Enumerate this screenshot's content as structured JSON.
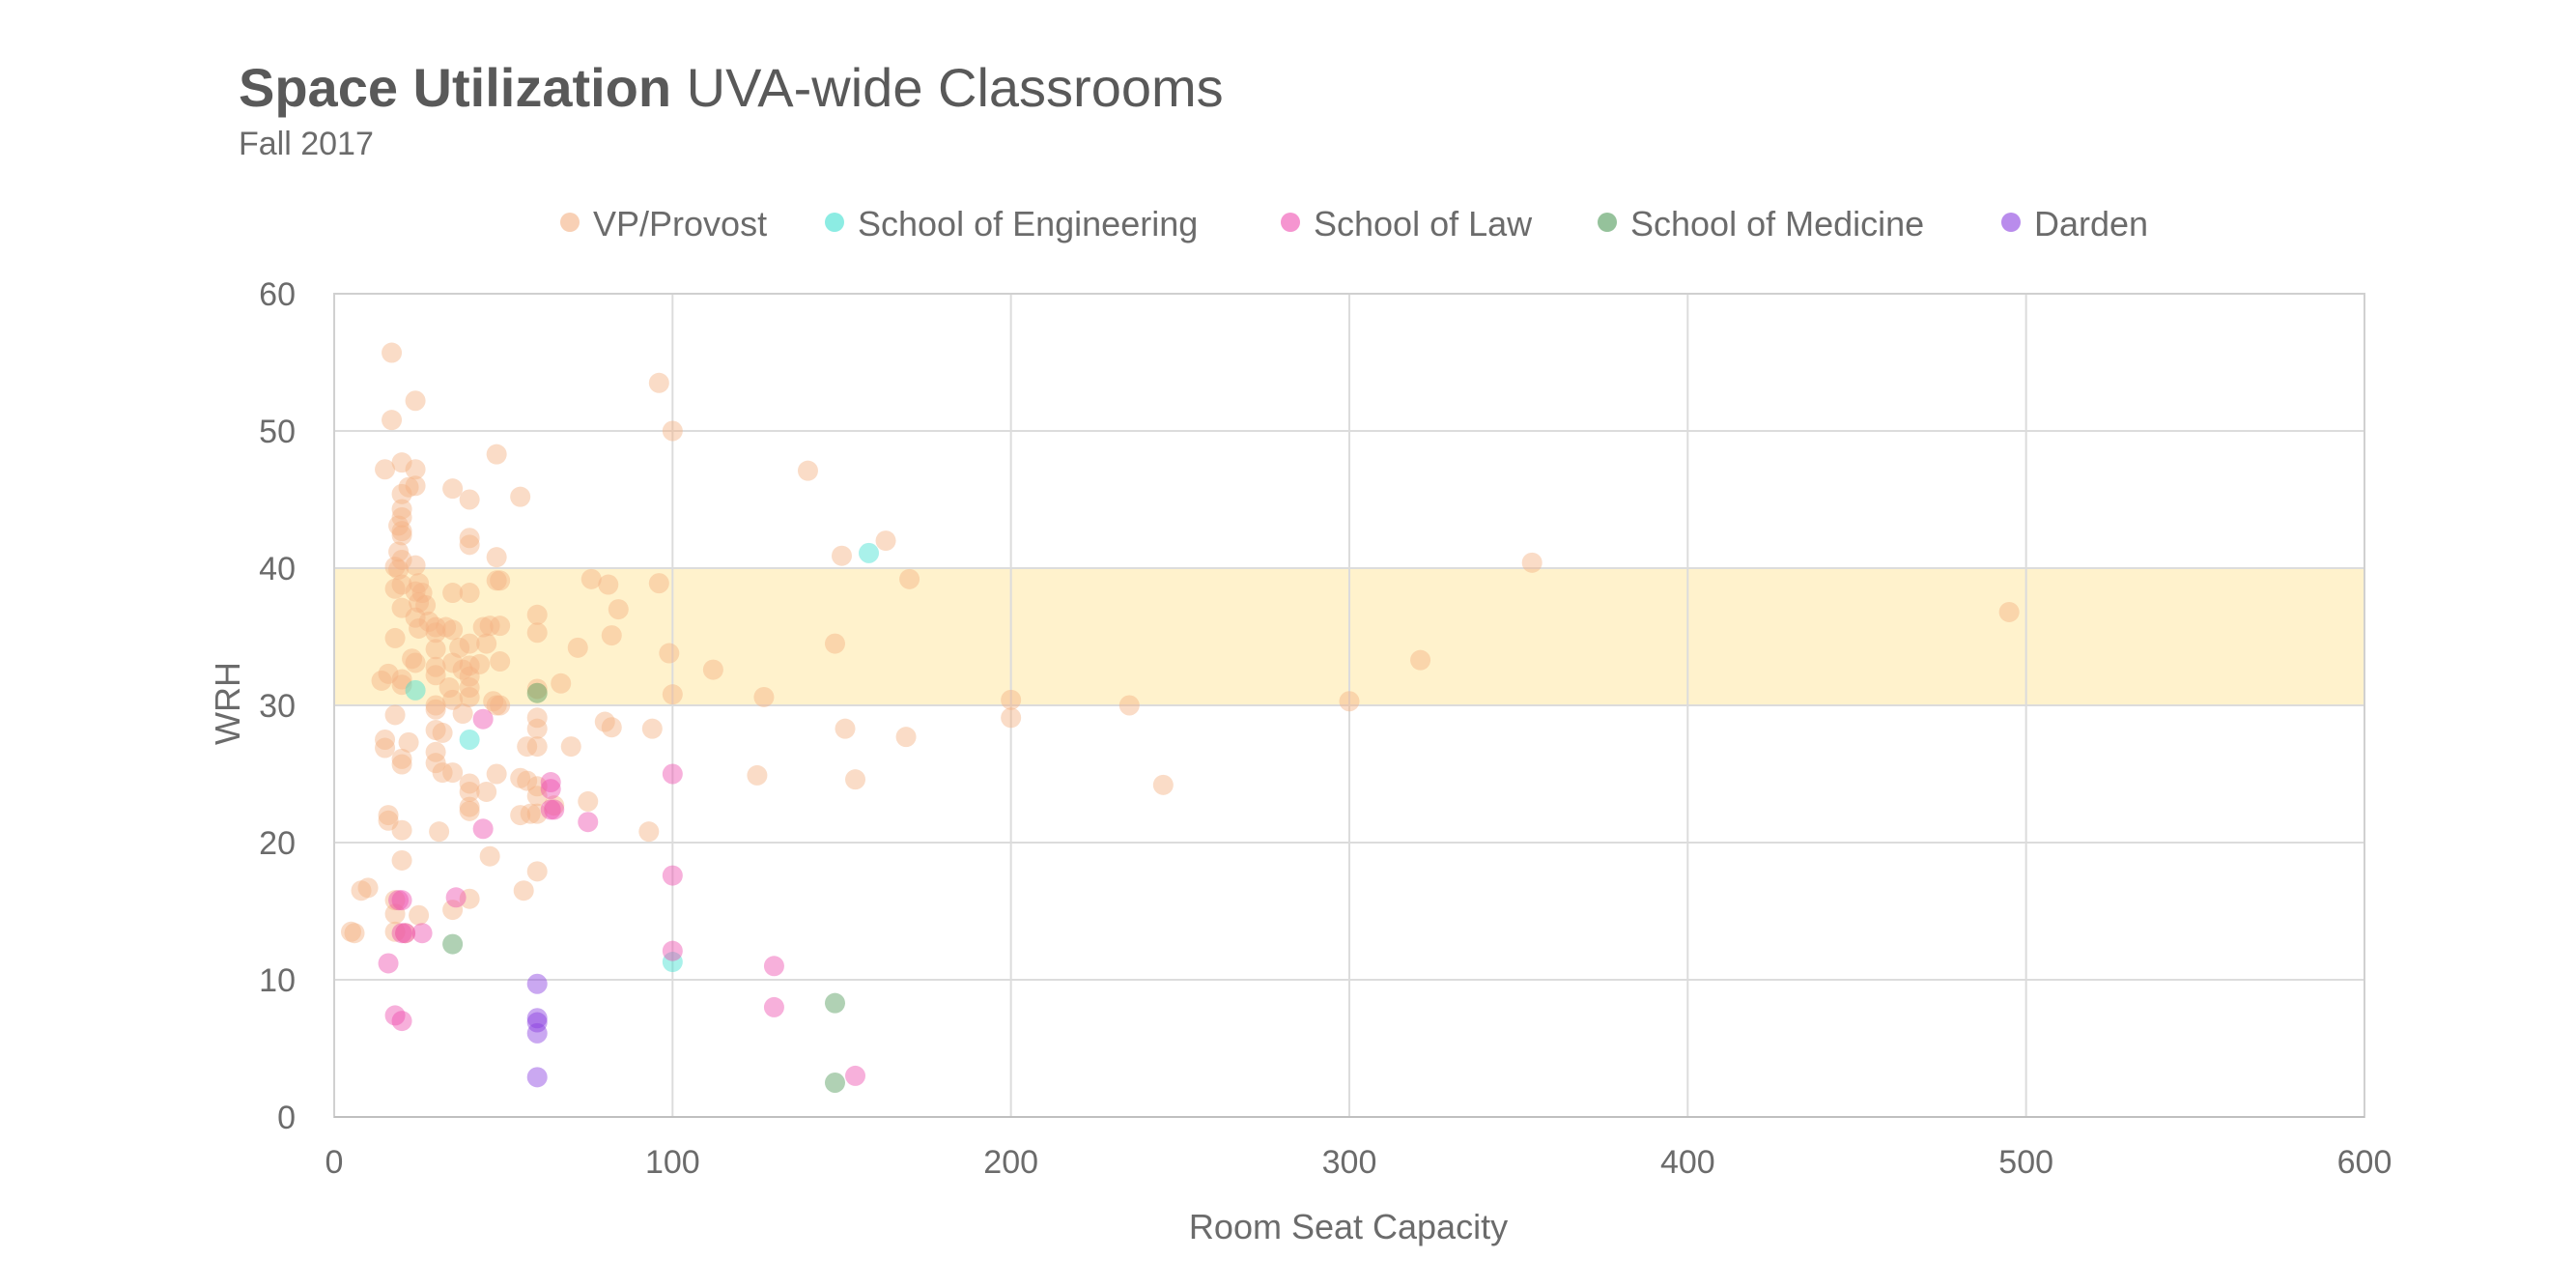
{
  "header": {
    "title_bold": "Space Utilization",
    "title_rest": "UVA-wide Classrooms",
    "subtitle": "Fall 2017"
  },
  "chart_data": {
    "type": "scatter",
    "title": "Space Utilization UVA-wide Classrooms",
    "subtitle": "Fall 2017",
    "xlabel": "Room Seat Capacity",
    "ylabel": "WRH",
    "xlim": [
      0,
      600
    ],
    "ylim": [
      0,
      60
    ],
    "xticks": [
      0,
      100,
      200,
      300,
      400,
      500,
      600
    ],
    "yticks": [
      0,
      10,
      20,
      30,
      40,
      50,
      60
    ],
    "grid": true,
    "legend_position": "top",
    "target_band": {
      "y_from": 30,
      "y_to": 40,
      "color": "#fff2cc"
    },
    "series": [
      {
        "name": "VP/Provost",
        "color": "#f4b183",
        "points": [
          [
            5,
            13.5
          ],
          [
            6,
            13.4
          ],
          [
            8,
            16.5
          ],
          [
            10,
            16.7
          ],
          [
            14,
            31.8
          ],
          [
            15,
            27.5
          ],
          [
            15,
            26.9
          ],
          [
            15,
            47.2
          ],
          [
            16,
            22
          ],
          [
            16,
            32.3
          ],
          [
            16,
            21.6
          ],
          [
            17,
            55.7
          ],
          [
            17,
            50.8
          ],
          [
            18,
            34.9
          ],
          [
            18,
            29.3
          ],
          [
            18,
            38.5
          ],
          [
            18,
            40.1
          ],
          [
            18,
            15.8
          ],
          [
            18,
            13.5
          ],
          [
            18,
            14.8
          ],
          [
            19,
            39.9
          ],
          [
            19,
            43.1
          ],
          [
            19,
            41.2
          ],
          [
            20,
            47.7
          ],
          [
            20,
            45.4
          ],
          [
            20,
            44.3
          ],
          [
            20,
            43.7
          ],
          [
            20,
            42.7
          ],
          [
            20,
            42.4
          ],
          [
            20,
            40.6
          ],
          [
            20,
            38.8
          ],
          [
            20,
            37.1
          ],
          [
            20,
            31.9
          ],
          [
            20,
            31.5
          ],
          [
            20,
            26.1
          ],
          [
            20,
            25.7
          ],
          [
            20,
            20.9
          ],
          [
            20,
            18.7
          ],
          [
            21,
            13.4
          ],
          [
            22,
            45.9
          ],
          [
            22,
            27.3
          ],
          [
            23,
            33.4
          ],
          [
            24,
            33.1
          ],
          [
            24,
            38.3
          ],
          [
            24,
            40.2
          ],
          [
            24,
            52.2
          ],
          [
            24,
            47.2
          ],
          [
            24,
            46
          ],
          [
            24,
            36.4
          ],
          [
            25,
            37.5
          ],
          [
            25,
            35.6
          ],
          [
            25,
            14.7
          ],
          [
            25,
            38.9
          ],
          [
            26,
            38.2
          ],
          [
            27,
            37.3
          ],
          [
            28,
            36.1
          ],
          [
            30,
            35.7
          ],
          [
            30,
            35.3
          ],
          [
            30,
            34.1
          ],
          [
            30,
            32.8
          ],
          [
            30,
            32.2
          ],
          [
            30,
            30
          ],
          [
            30,
            29.7
          ],
          [
            30,
            28.2
          ],
          [
            30,
            26.6
          ],
          [
            30,
            25.8
          ],
          [
            31,
            20.8
          ],
          [
            32,
            28
          ],
          [
            32,
            25.1
          ],
          [
            33,
            35.7
          ],
          [
            34,
            31.3
          ],
          [
            35,
            45.8
          ],
          [
            35,
            38.2
          ],
          [
            35,
            35.5
          ],
          [
            35,
            33.1
          ],
          [
            35,
            30.4
          ],
          [
            35,
            25.1
          ],
          [
            35,
            15.1
          ],
          [
            37,
            34.2
          ],
          [
            38,
            32.6
          ],
          [
            38,
            29.4
          ],
          [
            40,
            45
          ],
          [
            40,
            42.2
          ],
          [
            40,
            41.7
          ],
          [
            40,
            38.2
          ],
          [
            40,
            34.5
          ],
          [
            40,
            32.9
          ],
          [
            40,
            32.1
          ],
          [
            40,
            31.3
          ],
          [
            40,
            30.6
          ],
          [
            40,
            24.3
          ],
          [
            40,
            23.7
          ],
          [
            40,
            22.6
          ],
          [
            40,
            22.3
          ],
          [
            40,
            15.9
          ],
          [
            43,
            33
          ],
          [
            44,
            35.7
          ],
          [
            45,
            34.5
          ],
          [
            45,
            23.7
          ],
          [
            46,
            19
          ],
          [
            46,
            35.8
          ],
          [
            47,
            30.3
          ],
          [
            48,
            48.3
          ],
          [
            48,
            40.8
          ],
          [
            48,
            39.1
          ],
          [
            48,
            30
          ],
          [
            48,
            25
          ],
          [
            49,
            39.1
          ],
          [
            49,
            35.8
          ],
          [
            49,
            33.2
          ],
          [
            49,
            30
          ],
          [
            55,
            45.2
          ],
          [
            55,
            24.7
          ],
          [
            55,
            22
          ],
          [
            56,
            16.5
          ],
          [
            57,
            24.5
          ],
          [
            57,
            27
          ],
          [
            58,
            22.1
          ],
          [
            60,
            36.6
          ],
          [
            60,
            35.3
          ],
          [
            60,
            31.2
          ],
          [
            60,
            29.1
          ],
          [
            60,
            28.3
          ],
          [
            60,
            27
          ],
          [
            60,
            24.1
          ],
          [
            60,
            23.4
          ],
          [
            60,
            22.1
          ],
          [
            60,
            17.9
          ],
          [
            65,
            22.7
          ],
          [
            67,
            31.6
          ],
          [
            70,
            27
          ],
          [
            72,
            34.2
          ],
          [
            75,
            23
          ],
          [
            76,
            39.2
          ],
          [
            80,
            28.8
          ],
          [
            81,
            38.8
          ],
          [
            82,
            28.4
          ],
          [
            82,
            35.1
          ],
          [
            84,
            37
          ],
          [
            93,
            20.8
          ],
          [
            94,
            28.3
          ],
          [
            96,
            38.9
          ],
          [
            96,
            53.5
          ],
          [
            99,
            33.8
          ],
          [
            100,
            50
          ],
          [
            100,
            30.8
          ],
          [
            112,
            32.6
          ],
          [
            125,
            24.9
          ],
          [
            127,
            30.6
          ],
          [
            140,
            47.1
          ],
          [
            148,
            34.5
          ],
          [
            150,
            40.9
          ],
          [
            151,
            28.3
          ],
          [
            154,
            24.6
          ],
          [
            163,
            42
          ],
          [
            170,
            39.2
          ],
          [
            169,
            27.7
          ],
          [
            200,
            30.4
          ],
          [
            200,
            29.1
          ],
          [
            235,
            30
          ],
          [
            245,
            24.2
          ],
          [
            300,
            30.3
          ],
          [
            321,
            33.3
          ],
          [
            354,
            40.4
          ],
          [
            495,
            36.8
          ]
        ]
      },
      {
        "name": "School of Engineering",
        "color": "#40e0d0",
        "points": [
          [
            24,
            31.1
          ],
          [
            40,
            27.5
          ],
          [
            100,
            11.3
          ],
          [
            158,
            41.1
          ]
        ]
      },
      {
        "name": "School of Law",
        "color": "#ee4fb0",
        "points": [
          [
            16,
            11.2
          ],
          [
            18,
            7.4
          ],
          [
            19,
            15.8
          ],
          [
            20,
            15.8
          ],
          [
            20,
            13.4
          ],
          [
            20,
            7
          ],
          [
            21,
            13.4
          ],
          [
            26,
            13.4
          ],
          [
            36,
            16
          ],
          [
            44,
            29
          ],
          [
            44,
            21
          ],
          [
            64,
            23.9
          ],
          [
            64,
            24.4
          ],
          [
            64,
            22.4
          ],
          [
            65,
            22.4
          ],
          [
            75,
            21.5
          ],
          [
            100,
            25
          ],
          [
            100,
            17.6
          ],
          [
            100,
            12.1
          ],
          [
            130,
            11
          ],
          [
            130,
            8
          ],
          [
            154,
            3
          ]
        ]
      },
      {
        "name": "School of Medicine",
        "color": "#4f9a58",
        "points": [
          [
            35,
            12.6
          ],
          [
            60,
            30.9
          ],
          [
            148,
            8.3
          ],
          [
            148,
            2.5
          ]
        ]
      },
      {
        "name": "Darden",
        "color": "#8a3fe0",
        "points": [
          [
            60,
            9.7
          ],
          [
            60,
            7.2
          ],
          [
            60,
            6.9
          ],
          [
            60,
            6.1
          ],
          [
            60,
            2.9
          ]
        ]
      }
    ]
  }
}
